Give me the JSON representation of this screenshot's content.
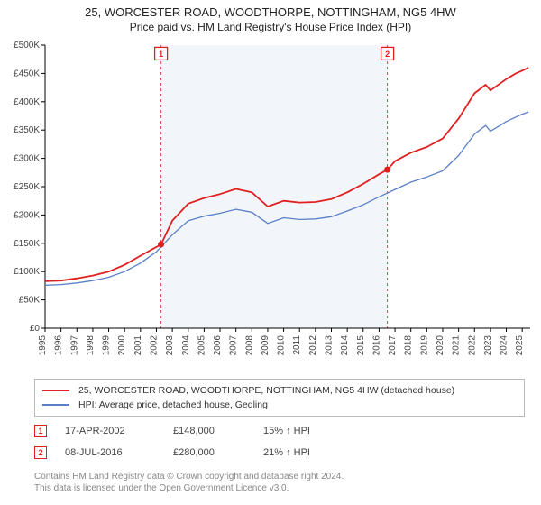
{
  "title_line1": "25, WORCESTER ROAD, WOODTHORPE, NOTTINGHAM, NG5 4HW",
  "title_line2": "Price paid vs. HM Land Registry's House Price Index (HPI)",
  "chart": {
    "type": "line",
    "plot_bg": "#ffffff",
    "shaded_bg": "#f2f6fb",
    "shaded_dash_color": "#d24a4a",
    "axis_color": "#000000",
    "grid_color": "#f0f0f0",
    "x": {
      "min": 1995,
      "max": 2025.5,
      "ticks": [
        1995,
        1996,
        1997,
        1998,
        1999,
        2000,
        2001,
        2002,
        2003,
        2004,
        2005,
        2006,
        2007,
        2008,
        2009,
        2010,
        2011,
        2012,
        2013,
        2014,
        2015,
        2016,
        2017,
        2018,
        2019,
        2020,
        2021,
        2022,
        2023,
        2024,
        2025
      ]
    },
    "y": {
      "min": 0,
      "max": 500000,
      "prefix": "£",
      "ticks": [
        0,
        50000,
        100000,
        150000,
        200000,
        250000,
        300000,
        350000,
        400000,
        450000,
        500000
      ],
      "tick_labels": [
        "£0",
        "£50K",
        "£100K",
        "£150K",
        "£200K",
        "£250K",
        "£300K",
        "£350K",
        "£400K",
        "£450K",
        "£500K"
      ]
    },
    "shaded_range": {
      "from": 2002.29,
      "to": 2016.52
    },
    "series": [
      {
        "id": "property",
        "label": "25, WORCESTER ROAD, WOODTHORPE, NOTTINGHAM, NG5 4HW (detached house)",
        "color": "#e02020",
        "width": 1.8,
        "points": [
          [
            1995,
            83000
          ],
          [
            1996,
            84000
          ],
          [
            1997,
            88000
          ],
          [
            1998,
            93000
          ],
          [
            1999,
            100000
          ],
          [
            2000,
            112000
          ],
          [
            2001,
            128000
          ],
          [
            2002.29,
            148000
          ],
          [
            2003,
            190000
          ],
          [
            2004,
            220000
          ],
          [
            2005,
            230000
          ],
          [
            2006,
            237000
          ],
          [
            2007,
            246000
          ],
          [
            2008,
            240000
          ],
          [
            2009,
            215000
          ],
          [
            2010,
            225000
          ],
          [
            2011,
            222000
          ],
          [
            2012,
            223000
          ],
          [
            2013,
            228000
          ],
          [
            2014,
            240000
          ],
          [
            2015,
            255000
          ],
          [
            2016,
            272000
          ],
          [
            2016.52,
            280000
          ],
          [
            2017,
            295000
          ],
          [
            2018,
            310000
          ],
          [
            2019,
            320000
          ],
          [
            2020,
            335000
          ],
          [
            2021,
            370000
          ],
          [
            2022,
            415000
          ],
          [
            2022.7,
            430000
          ],
          [
            2023,
            420000
          ],
          [
            2023.6,
            432000
          ],
          [
            2024,
            440000
          ],
          [
            2024.6,
            450000
          ],
          [
            2025,
            455000
          ],
          [
            2025.4,
            460000
          ]
        ]
      },
      {
        "id": "hpi",
        "label": "HPI: Average price, detached house, Gedling",
        "color": "#5b7fc7",
        "width": 1.3,
        "points": [
          [
            1995,
            76000
          ],
          [
            1996,
            77000
          ],
          [
            1997,
            80000
          ],
          [
            1998,
            84000
          ],
          [
            1999,
            90000
          ],
          [
            2000,
            100000
          ],
          [
            2001,
            115000
          ],
          [
            2002,
            135000
          ],
          [
            2003,
            165000
          ],
          [
            2004,
            190000
          ],
          [
            2005,
            198000
          ],
          [
            2006,
            203000
          ],
          [
            2007,
            210000
          ],
          [
            2008,
            205000
          ],
          [
            2009,
            185000
          ],
          [
            2010,
            195000
          ],
          [
            2011,
            192000
          ],
          [
            2012,
            193000
          ],
          [
            2013,
            197000
          ],
          [
            2014,
            207000
          ],
          [
            2015,
            218000
          ],
          [
            2016,
            232000
          ],
          [
            2017,
            245000
          ],
          [
            2018,
            258000
          ],
          [
            2019,
            267000
          ],
          [
            2020,
            278000
          ],
          [
            2021,
            305000
          ],
          [
            2022,
            343000
          ],
          [
            2022.7,
            358000
          ],
          [
            2023,
            348000
          ],
          [
            2023.6,
            358000
          ],
          [
            2024,
            365000
          ],
          [
            2024.6,
            373000
          ],
          [
            2025,
            378000
          ],
          [
            2025.4,
            382000
          ]
        ]
      }
    ],
    "markers": [
      {
        "n": "1",
        "x": 2002.29,
        "y": 148000,
        "color": "#e02020"
      },
      {
        "n": "2",
        "x": 2016.52,
        "y": 280000,
        "color": "#e02020"
      }
    ],
    "marker_flag_y": 485000
  },
  "legend": {
    "border_color": "#bbbbbb",
    "rows": [
      {
        "color": "#e02020",
        "label": "25, WORCESTER ROAD, WOODTHORPE, NOTTINGHAM, NG5 4HW (detached house)"
      },
      {
        "color": "#5b7fc7",
        "label": "HPI: Average price, detached house, Gedling"
      }
    ]
  },
  "sales": [
    {
      "n": "1",
      "date": "17-APR-2002",
      "price": "£148,000",
      "hpi": "15% ↑ HPI"
    },
    {
      "n": "2",
      "date": "08-JUL-2016",
      "price": "£280,000",
      "hpi": "21% ↑ HPI"
    }
  ],
  "footer": {
    "line1": "Contains HM Land Registry data © Crown copyright and database right 2024.",
    "line2": "This data is licensed under the Open Government Licence v3.0."
  },
  "colors": {
    "marker_border": "#e02020",
    "marker_text": "#e02020"
  }
}
